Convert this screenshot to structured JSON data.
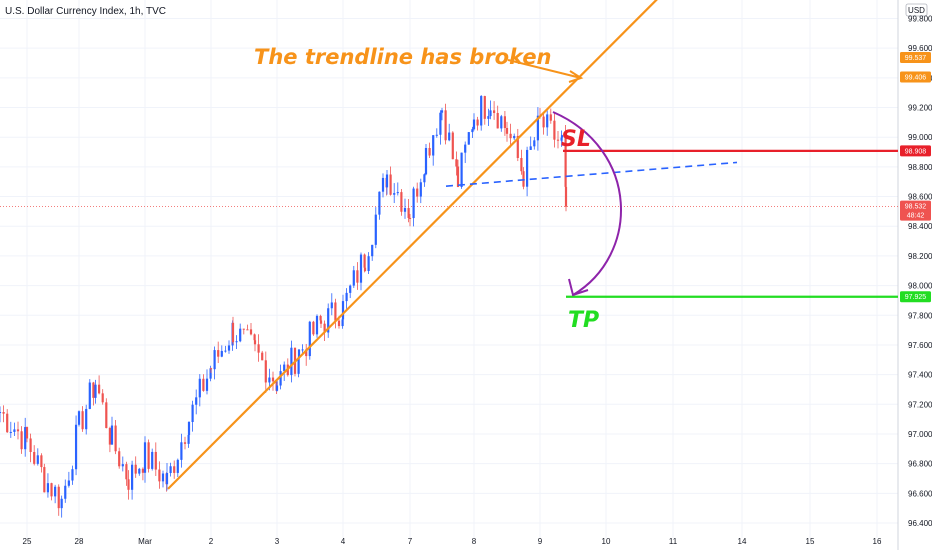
{
  "header": {
    "symbol_title": "U.S. Dollar Currency Index, 1h, TVC",
    "currency_label": "USD"
  },
  "annotations": {
    "trendline_note": "The trendline has broken",
    "sl_label": "SL",
    "tp_label": "TP"
  },
  "price_tags": [
    {
      "text": "99.537",
      "value": 99.537,
      "color": "#f7931a",
      "text_color": "#ffffff"
    },
    {
      "text": "99.406",
      "value": 99.406,
      "color": "#f7931a",
      "text_color": "#ffffff"
    },
    {
      "text": "98.908",
      "value": 98.908,
      "color": "#e8202a",
      "text_color": "#ffffff"
    },
    {
      "text": "98.532",
      "value": 98.532,
      "color": "#ef5350",
      "text_color": "#ffffff",
      "subtext": "48:42"
    },
    {
      "text": "97.925",
      "value": 97.925,
      "color": "#22dd22",
      "text_color": "#ffffff"
    }
  ],
  "colors": {
    "up": "#2962ff",
    "down": "#ef5350",
    "trendline": "#f7931a",
    "stop_loss": "#e8202a",
    "take_profit": "#22dd22",
    "neckline": "#2962ff",
    "arrow": "#8e24aa",
    "current_price_line": "#ef5350"
  },
  "chart_data": {
    "type": "candlestick",
    "title": "U.S. Dollar Currency Index, 1h, TVC",
    "y_axis_unit": "USD",
    "ylim": [
      96.37,
      99.98
    ],
    "y_ticks": [
      "99.800",
      "99.600",
      "99.400",
      "99.200",
      "99.000",
      "98.800",
      "98.600",
      "98.400",
      "98.200",
      "98.000",
      "97.800",
      "97.600",
      "97.400",
      "97.200",
      "97.000",
      "96.800",
      "96.600",
      "96.400"
    ],
    "x_ticks": [
      "25",
      "28",
      "Mar",
      "2",
      "3",
      "4",
      "7",
      "8",
      "9",
      "10",
      "11",
      "14",
      "15",
      "16"
    ],
    "last_price": 98.532,
    "stop_loss": 98.908,
    "take_profit": 97.925,
    "trendline": {
      "start": {
        "date": "Mar 1",
        "price": 96.63
      },
      "end": {
        "date": "Mar 11",
        "price": 99.99
      }
    },
    "neckline": {
      "start": {
        "date": "Mar 7",
        "price": 98.67
      },
      "end": {
        "date": "Mar 14",
        "price": 98.83
      }
    },
    "price_path": [
      {
        "date": "Feb 24",
        "price": 97.15
      },
      {
        "date": "Feb 25",
        "price": 96.95
      },
      {
        "date": "Feb 25",
        "price": 96.7
      },
      {
        "date": "Feb 25",
        "price": 96.55
      },
      {
        "date": "Feb 28",
        "price": 97.05
      },
      {
        "date": "Feb 28",
        "price": 97.35
      },
      {
        "date": "Feb 28",
        "price": 96.95
      },
      {
        "date": "Feb 28",
        "price": 96.7
      },
      {
        "date": "Mar 1",
        "price": 96.85
      },
      {
        "date": "Mar 1",
        "price": 96.68
      },
      {
        "date": "Mar 1",
        "price": 97.1
      },
      {
        "date": "Mar 2",
        "price": 97.45
      },
      {
        "date": "Mar 2",
        "price": 97.7
      },
      {
        "date": "Mar 2",
        "price": 97.55
      },
      {
        "date": "Mar 3",
        "price": 97.35
      },
      {
        "date": "Mar 3",
        "price": 97.55
      },
      {
        "date": "Mar 3",
        "price": 97.75
      },
      {
        "date": "Mar 4",
        "price": 97.85
      },
      {
        "date": "Mar 4",
        "price": 98.2
      },
      {
        "date": "Mar 4",
        "price": 98.75
      },
      {
        "date": "Mar 7",
        "price": 98.5
      },
      {
        "date": "Mar 7",
        "price": 98.9
      },
      {
        "date": "Mar 7",
        "price": 99.2
      },
      {
        "date": "Mar 7",
        "price": 98.7
      },
      {
        "date": "Mar 8",
        "price": 99.15
      },
      {
        "date": "Mar 8",
        "price": 99.25
      },
      {
        "date": "Mar 8",
        "price": 99.05
      },
      {
        "date": "Mar 8",
        "price": 98.75
      },
      {
        "date": "Mar 9",
        "price": 99.1
      },
      {
        "date": "Mar 9",
        "price": 98.95
      },
      {
        "date": "Mar 9",
        "price": 98.532
      }
    ]
  }
}
